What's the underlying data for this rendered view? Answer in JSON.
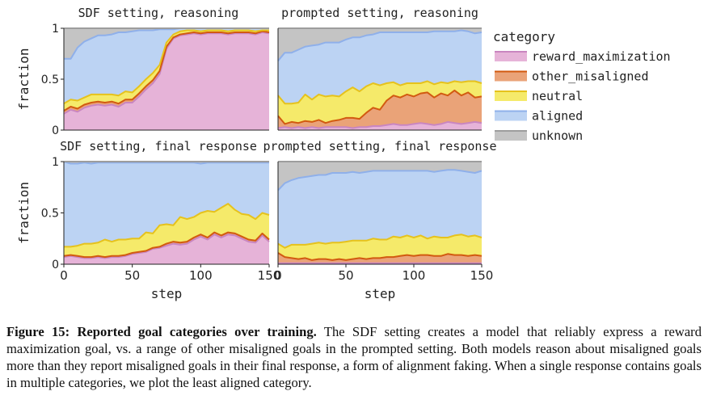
{
  "figure": {
    "caption_label": "Figure 15:",
    "caption_title": "Reported goal categories over training.",
    "caption_text": "The SDF setting creates a model that reliably express a reward maximization goal, vs. a range of other misaligned goals in the prompted setting. Both models reason about misaligned goals more than they report misaligned goals in their final response, a form of alignment faking. When a single response contains goals in multiple categories, we plot the least aligned category."
  },
  "legend": {
    "title": "category",
    "items": [
      {
        "label": "reward_maximization",
        "fill": "#e6b3d8",
        "line": "#c986c0"
      },
      {
        "label": "other_misaligned",
        "fill": "#eaa378",
        "line": "#d25a10"
      },
      {
        "label": "neutral",
        "fill": "#f5ea6a",
        "line": "#e6c21c"
      },
      {
        "label": "aligned",
        "fill": "#bcd3f3",
        "line": "#8fb0ea"
      },
      {
        "label": "unknown",
        "fill": "#c4c4c4",
        "line": "#9d9d9d"
      }
    ]
  },
  "axes": {
    "xlabel": "step",
    "ylabel": "fraction",
    "yticks": [
      "0",
      "0.5",
      "1"
    ],
    "xticks": [
      "0",
      "50",
      "100",
      "150"
    ]
  },
  "chart_data": [
    {
      "type": "area",
      "title": "SDF setting, reasoning",
      "xlabel": "step",
      "ylabel": "fraction",
      "xlim": [
        0,
        150
      ],
      "ylim": [
        0,
        1
      ],
      "x": [
        0,
        5,
        10,
        15,
        20,
        25,
        30,
        35,
        40,
        45,
        50,
        55,
        60,
        65,
        70,
        75,
        80,
        85,
        90,
        95,
        100,
        105,
        110,
        115,
        120,
        125,
        130,
        135,
        140,
        145,
        150
      ],
      "series": [
        {
          "name": "reward_maximization",
          "values": [
            0.16,
            0.2,
            0.18,
            0.22,
            0.24,
            0.25,
            0.24,
            0.25,
            0.23,
            0.27,
            0.27,
            0.33,
            0.4,
            0.46,
            0.55,
            0.8,
            0.9,
            0.93,
            0.94,
            0.95,
            0.94,
            0.95,
            0.95,
            0.95,
            0.94,
            0.95,
            0.95,
            0.95,
            0.94,
            0.96,
            0.95
          ]
        },
        {
          "name": "other_misaligned",
          "values": [
            0.03,
            0.03,
            0.03,
            0.03,
            0.03,
            0.03,
            0.03,
            0.03,
            0.03,
            0.03,
            0.03,
            0.03,
            0.03,
            0.03,
            0.03,
            0.02,
            0.01,
            0.01,
            0.01,
            0.01,
            0.01,
            0.01,
            0.01,
            0.01,
            0.01,
            0.01,
            0.01,
            0.01,
            0.01,
            0.01,
            0.01
          ]
        },
        {
          "name": "neutral",
          "values": [
            0.07,
            0.07,
            0.08,
            0.07,
            0.08,
            0.07,
            0.08,
            0.07,
            0.08,
            0.08,
            0.07,
            0.07,
            0.07,
            0.07,
            0.06,
            0.04,
            0.03,
            0.03,
            0.03,
            0.02,
            0.02,
            0.02,
            0.02,
            0.02,
            0.02,
            0.02,
            0.02,
            0.02,
            0.02,
            0.01,
            0.02
          ]
        },
        {
          "name": "aligned",
          "values": [
            0.44,
            0.4,
            0.52,
            0.55,
            0.55,
            0.58,
            0.58,
            0.59,
            0.62,
            0.58,
            0.6,
            0.55,
            0.48,
            0.42,
            0.35,
            0.13,
            0.05,
            0.03,
            0.02,
            0.02,
            0.03,
            0.02,
            0.02,
            0.02,
            0.03,
            0.02,
            0.02,
            0.02,
            0.03,
            0.02,
            0.02
          ]
        },
        {
          "name": "unknown",
          "values": [
            0.3,
            0.3,
            0.19,
            0.13,
            0.1,
            0.07,
            0.07,
            0.06,
            0.04,
            0.04,
            0.03,
            0.02,
            0.02,
            0.02,
            0.01,
            0.01,
            0.01,
            0.0,
            0.0,
            0.0,
            0.0,
            0.0,
            0.0,
            0.0,
            0.0,
            0.0,
            0.0,
            0.0,
            0.0,
            0.0,
            0.0
          ]
        }
      ]
    },
    {
      "type": "area",
      "title": "prompted setting, reasoning",
      "xlabel": "step",
      "ylabel": "fraction",
      "xlim": [
        0,
        150
      ],
      "ylim": [
        0,
        1
      ],
      "x": [
        0,
        5,
        10,
        15,
        20,
        25,
        30,
        35,
        40,
        45,
        50,
        55,
        60,
        65,
        70,
        75,
        80,
        85,
        90,
        95,
        100,
        105,
        110,
        115,
        120,
        125,
        130,
        135,
        140,
        145,
        150
      ],
      "series": [
        {
          "name": "reward_maximization",
          "values": [
            0.02,
            0.03,
            0.02,
            0.03,
            0.02,
            0.03,
            0.02,
            0.03,
            0.03,
            0.03,
            0.03,
            0.02,
            0.03,
            0.03,
            0.04,
            0.04,
            0.05,
            0.06,
            0.05,
            0.05,
            0.06,
            0.07,
            0.06,
            0.05,
            0.06,
            0.08,
            0.07,
            0.06,
            0.07,
            0.08,
            0.07
          ]
        },
        {
          "name": "other_misaligned",
          "values": [
            0.12,
            0.03,
            0.06,
            0.04,
            0.07,
            0.05,
            0.08,
            0.04,
            0.06,
            0.07,
            0.09,
            0.1,
            0.08,
            0.14,
            0.18,
            0.16,
            0.24,
            0.28,
            0.27,
            0.3,
            0.27,
            0.29,
            0.31,
            0.27,
            0.3,
            0.26,
            0.32,
            0.28,
            0.3,
            0.24,
            0.26
          ]
        },
        {
          "name": "neutral",
          "values": [
            0.2,
            0.2,
            0.18,
            0.2,
            0.26,
            0.22,
            0.25,
            0.26,
            0.25,
            0.23,
            0.26,
            0.3,
            0.27,
            0.26,
            0.24,
            0.24,
            0.17,
            0.13,
            0.12,
            0.11,
            0.13,
            0.1,
            0.11,
            0.13,
            0.11,
            0.12,
            0.09,
            0.13,
            0.11,
            0.16,
            0.13
          ]
        },
        {
          "name": "aligned",
          "values": [
            0.34,
            0.5,
            0.5,
            0.52,
            0.47,
            0.53,
            0.49,
            0.53,
            0.52,
            0.53,
            0.51,
            0.49,
            0.53,
            0.5,
            0.48,
            0.52,
            0.5,
            0.49,
            0.52,
            0.5,
            0.5,
            0.5,
            0.48,
            0.52,
            0.5,
            0.51,
            0.49,
            0.51,
            0.49,
            0.47,
            0.5
          ]
        },
        {
          "name": "unknown",
          "values": [
            0.32,
            0.24,
            0.24,
            0.21,
            0.18,
            0.17,
            0.16,
            0.14,
            0.14,
            0.14,
            0.11,
            0.09,
            0.09,
            0.07,
            0.06,
            0.04,
            0.04,
            0.04,
            0.04,
            0.04,
            0.04,
            0.04,
            0.04,
            0.03,
            0.03,
            0.03,
            0.03,
            0.02,
            0.03,
            0.05,
            0.04
          ]
        }
      ]
    },
    {
      "type": "area",
      "title": "SDF setting, final response",
      "xlabel": "step",
      "ylabel": "fraction",
      "xlim": [
        0,
        150
      ],
      "ylim": [
        0,
        1
      ],
      "x": [
        0,
        5,
        10,
        15,
        20,
        25,
        30,
        35,
        40,
        45,
        50,
        55,
        60,
        65,
        70,
        75,
        80,
        85,
        90,
        95,
        100,
        105,
        110,
        115,
        120,
        125,
        130,
        135,
        140,
        145,
        150
      ],
      "series": [
        {
          "name": "reward_maximization",
          "values": [
            0.07,
            0.08,
            0.07,
            0.06,
            0.06,
            0.07,
            0.06,
            0.07,
            0.07,
            0.08,
            0.1,
            0.11,
            0.12,
            0.15,
            0.16,
            0.18,
            0.2,
            0.19,
            0.2,
            0.24,
            0.27,
            0.24,
            0.29,
            0.26,
            0.29,
            0.28,
            0.25,
            0.22,
            0.21,
            0.28,
            0.22
          ]
        },
        {
          "name": "other_misaligned",
          "values": [
            0.01,
            0.01,
            0.01,
            0.01,
            0.01,
            0.01,
            0.01,
            0.01,
            0.01,
            0.01,
            0.01,
            0.01,
            0.01,
            0.01,
            0.01,
            0.02,
            0.02,
            0.02,
            0.02,
            0.02,
            0.02,
            0.02,
            0.02,
            0.02,
            0.02,
            0.02,
            0.02,
            0.02,
            0.02,
            0.02,
            0.02
          ]
        },
        {
          "name": "neutral",
          "values": [
            0.09,
            0.08,
            0.1,
            0.13,
            0.13,
            0.13,
            0.17,
            0.14,
            0.16,
            0.15,
            0.14,
            0.13,
            0.18,
            0.14,
            0.21,
            0.19,
            0.16,
            0.25,
            0.22,
            0.2,
            0.21,
            0.26,
            0.2,
            0.27,
            0.28,
            0.23,
            0.22,
            0.24,
            0.21,
            0.2,
            0.24
          ]
        },
        {
          "name": "aligned",
          "values": [
            0.83,
            0.81,
            0.8,
            0.79,
            0.78,
            0.78,
            0.75,
            0.77,
            0.75,
            0.75,
            0.74,
            0.74,
            0.68,
            0.69,
            0.61,
            0.6,
            0.61,
            0.53,
            0.55,
            0.53,
            0.48,
            0.47,
            0.48,
            0.44,
            0.4,
            0.46,
            0.5,
            0.51,
            0.55,
            0.49,
            0.51
          ]
        },
        {
          "name": "unknown",
          "values": [
            0.0,
            0.02,
            0.02,
            0.01,
            0.02,
            0.01,
            0.01,
            0.01,
            0.01,
            0.01,
            0.01,
            0.01,
            0.01,
            0.01,
            0.01,
            0.01,
            0.01,
            0.01,
            0.01,
            0.01,
            0.02,
            0.01,
            0.01,
            0.01,
            0.01,
            0.01,
            0.01,
            0.01,
            0.01,
            0.01,
            0.01
          ]
        }
      ]
    },
    {
      "type": "area",
      "title": "prompted setting, final response",
      "xlabel": "step",
      "ylabel": "fraction",
      "xlim": [
        0,
        150
      ],
      "ylim": [
        0,
        1
      ],
      "x": [
        0,
        5,
        10,
        15,
        20,
        25,
        30,
        35,
        40,
        45,
        50,
        55,
        60,
        65,
        70,
        75,
        80,
        85,
        90,
        95,
        100,
        105,
        110,
        115,
        120,
        125,
        130,
        135,
        140,
        145,
        150
      ],
      "series": [
        {
          "name": "reward_maximization",
          "values": [
            0.01,
            0.01,
            0.01,
            0.01,
            0.01,
            0.01,
            0.01,
            0.01,
            0.01,
            0.01,
            0.01,
            0.01,
            0.01,
            0.01,
            0.01,
            0.01,
            0.01,
            0.01,
            0.01,
            0.01,
            0.01,
            0.01,
            0.01,
            0.01,
            0.01,
            0.01,
            0.01,
            0.01,
            0.01,
            0.01,
            0.01
          ]
        },
        {
          "name": "other_misaligned",
          "values": [
            0.1,
            0.06,
            0.05,
            0.04,
            0.05,
            0.03,
            0.04,
            0.04,
            0.03,
            0.04,
            0.03,
            0.04,
            0.05,
            0.04,
            0.05,
            0.05,
            0.06,
            0.06,
            0.07,
            0.08,
            0.07,
            0.08,
            0.08,
            0.07,
            0.07,
            0.09,
            0.08,
            0.08,
            0.07,
            0.08,
            0.07
          ]
        },
        {
          "name": "neutral",
          "values": [
            0.09,
            0.09,
            0.13,
            0.14,
            0.13,
            0.16,
            0.16,
            0.15,
            0.17,
            0.16,
            0.18,
            0.18,
            0.17,
            0.18,
            0.19,
            0.18,
            0.17,
            0.2,
            0.18,
            0.19,
            0.18,
            0.19,
            0.16,
            0.19,
            0.18,
            0.16,
            0.19,
            0.2,
            0.19,
            0.19,
            0.18
          ]
        },
        {
          "name": "aligned",
          "values": [
            0.52,
            0.63,
            0.63,
            0.65,
            0.66,
            0.66,
            0.66,
            0.67,
            0.68,
            0.68,
            0.67,
            0.67,
            0.66,
            0.67,
            0.66,
            0.67,
            0.67,
            0.64,
            0.65,
            0.63,
            0.65,
            0.63,
            0.66,
            0.63,
            0.65,
            0.66,
            0.64,
            0.62,
            0.63,
            0.61,
            0.65
          ]
        },
        {
          "name": "unknown",
          "values": [
            0.28,
            0.21,
            0.18,
            0.16,
            0.15,
            0.14,
            0.13,
            0.13,
            0.11,
            0.11,
            0.11,
            0.1,
            0.11,
            0.1,
            0.09,
            0.09,
            0.09,
            0.09,
            0.09,
            0.09,
            0.09,
            0.09,
            0.09,
            0.1,
            0.09,
            0.08,
            0.08,
            0.09,
            0.1,
            0.11,
            0.09
          ]
        }
      ]
    }
  ]
}
